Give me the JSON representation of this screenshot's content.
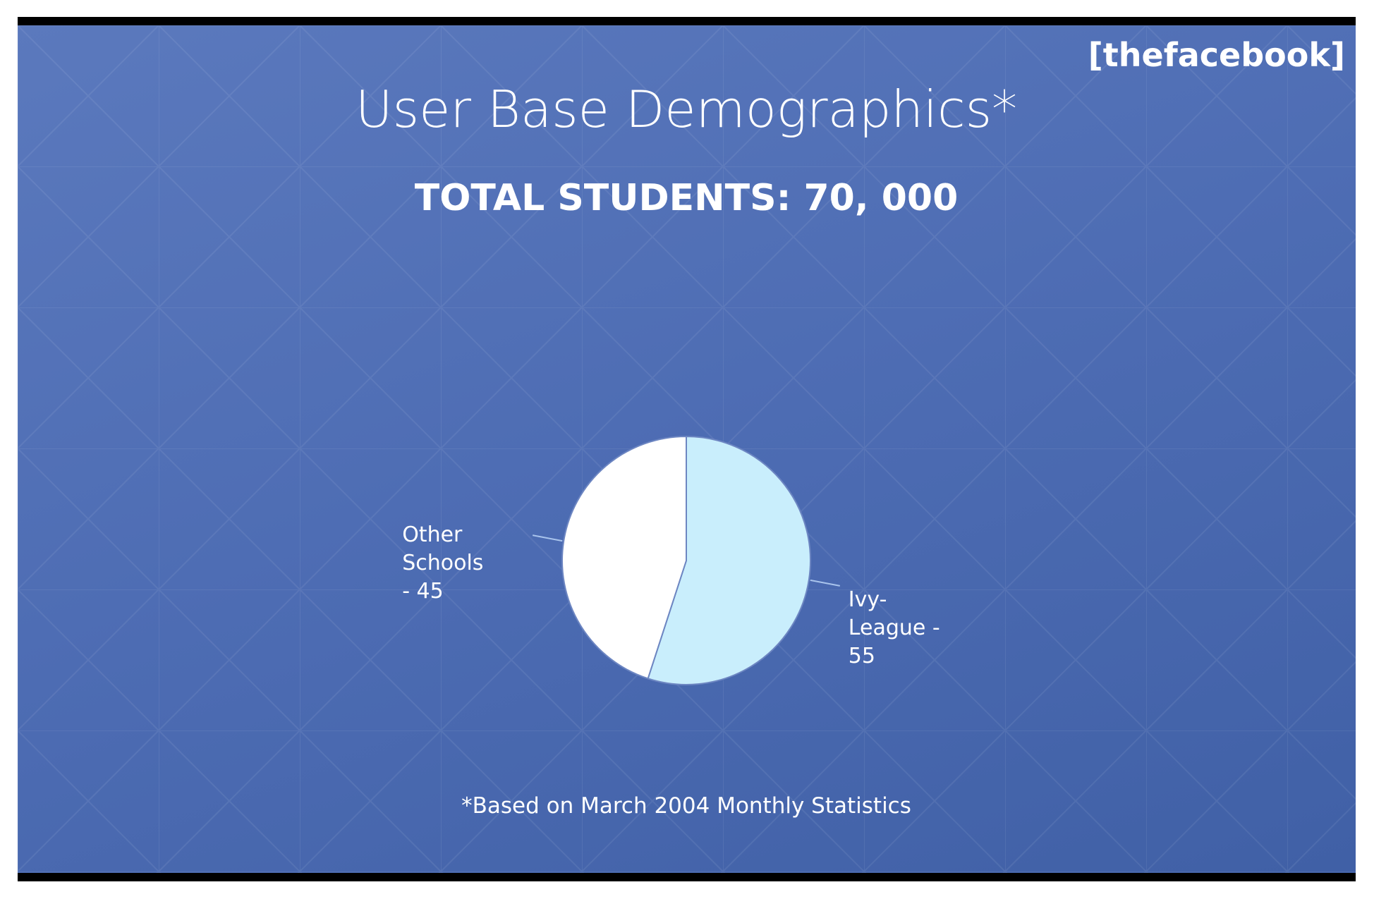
{
  "chart_data": {
    "type": "pie",
    "title": "User Base Demographics*",
    "subtitle": "TOTAL STUDENTS: 70, 000",
    "brand": "[thefacebook]",
    "note": "*Based on March 2004 Monthly Statistics",
    "values": [
      55,
      45
    ],
    "value_labels": [
      "Ivy-League - 55",
      "Other Schools - 45"
    ],
    "colors": [
      "#c9eefc",
      "#ffffff"
    ]
  }
}
